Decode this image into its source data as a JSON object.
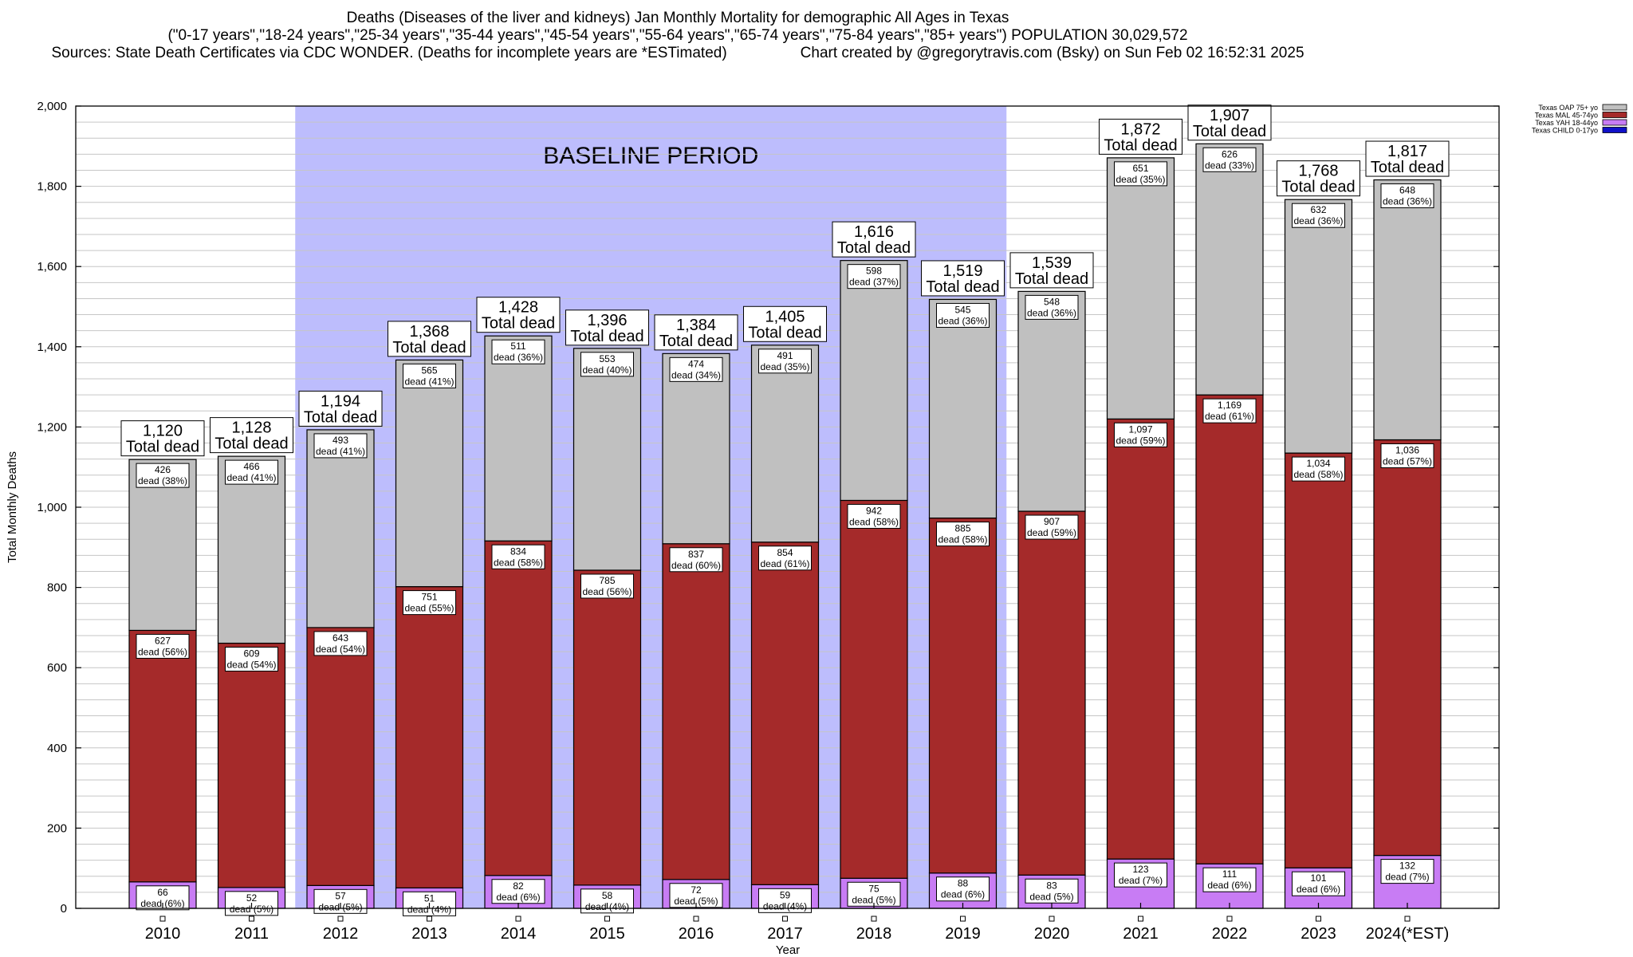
{
  "header": {
    "line1": "Deaths (Diseases of the liver and kidneys) Jan Monthly Mortality for demographic All Ages in Texas",
    "line2": "(\"0-17 years\",\"18-24 years\",\"25-34 years\",\"35-44 years\",\"45-54 years\",\"55-64 years\",\"65-74 years\",\"75-84 years\",\"85+ years\") POPULATION 30,029,572",
    "line3_left": "Sources: State Death Certificates via CDC WONDER. (Deaths for incomplete years are *ESTimated)",
    "line3_right": "Chart created by @gregorytravis.com (Bsky) on Sun Feb 02 16:52:31 2025"
  },
  "chart_data": {
    "type": "bar",
    "stacked": true,
    "title": "Deaths (Diseases of the liver and kidneys) Jan Monthly Mortality for demographic All Ages in Texas",
    "xlabel": "Year",
    "ylabel": "Total Monthly Deaths",
    "ylim": [
      0,
      2000
    ],
    "yticks": [
      0,
      200,
      400,
      600,
      800,
      1000,
      1200,
      1400,
      1600,
      1800,
      2000
    ],
    "ytick_labels": [
      "0",
      "200",
      "400",
      "600",
      "800",
      "1,000",
      "1,200",
      "1,400",
      "1,600",
      "1,800",
      "2,000"
    ],
    "grid": true,
    "legend_position": "top-right",
    "categories": [
      "2010",
      "2011",
      "2012",
      "2013",
      "2014",
      "2015",
      "2016",
      "2017",
      "2018",
      "2019",
      "2020",
      "2021",
      "2022",
      "2023",
      "2024(*EST)"
    ],
    "baseline_period": {
      "label": "BASELINE PERIOD",
      "from": "2012",
      "to": "2019",
      "color": "#bdbdfd"
    },
    "total_suffix": "Total dead",
    "series": [
      {
        "name": "Texas CHILD 0-17yo",
        "color": "#1010c8",
        "values": [
          0,
          0,
          0,
          0,
          0,
          0,
          0,
          0,
          0,
          0,
          0,
          0,
          0,
          0,
          0
        ],
        "labels": []
      },
      {
        "name": "Texas YAH 18-44yo",
        "color": "#c87cf4",
        "values": [
          66,
          52,
          57,
          51,
          82,
          58,
          72,
          59,
          75,
          88,
          83,
          123,
          111,
          101,
          132
        ],
        "labels": [
          [
            "66",
            "dead (6%)"
          ],
          [
            "52",
            "dead (5%)"
          ],
          [
            "57",
            "dead (5%)"
          ],
          [
            "51",
            "dead (4%)"
          ],
          [
            "82",
            "dead (6%)"
          ],
          [
            "58",
            "dead (4%)"
          ],
          [
            "72",
            "dead (5%)"
          ],
          [
            "59",
            "dead (4%)"
          ],
          [
            "75",
            "dead (5%)"
          ],
          [
            "88",
            "dead (6%)"
          ],
          [
            "83",
            "dead (5%)"
          ],
          [
            "123",
            "dead (7%)"
          ],
          [
            "111",
            "dead (6%)"
          ],
          [
            "101",
            "dead (6%)"
          ],
          [
            "132",
            "dead (7%)"
          ]
        ]
      },
      {
        "name": "Texas MAL 45-74yo",
        "color": "#a52a2a",
        "values": [
          627,
          609,
          643,
          751,
          834,
          785,
          837,
          854,
          942,
          885,
          907,
          1097,
          1169,
          1034,
          1036
        ],
        "labels": [
          [
            "627",
            "dead (56%)"
          ],
          [
            "609",
            "dead (54%)"
          ],
          [
            "643",
            "dead (54%)"
          ],
          [
            "751",
            "dead (55%)"
          ],
          [
            "834",
            "dead (58%)"
          ],
          [
            "785",
            "dead (56%)"
          ],
          [
            "837",
            "dead (60%)"
          ],
          [
            "854",
            "dead (61%)"
          ],
          [
            "942",
            "dead (58%)"
          ],
          [
            "885",
            "dead (58%)"
          ],
          [
            "907",
            "dead (59%)"
          ],
          [
            "1,097",
            "dead (59%)"
          ],
          [
            "1,169",
            "dead (61%)"
          ],
          [
            "1,034",
            "dead (58%)"
          ],
          [
            "1,036",
            "dead (57%)"
          ]
        ]
      },
      {
        "name": "Texas OAP 75+ yo",
        "color": "#c0c0c0",
        "values": [
          426,
          466,
          493,
          565,
          511,
          553,
          474,
          491,
          598,
          545,
          548,
          651,
          626,
          632,
          648
        ],
        "labels": [
          [
            "426",
            "dead (38%)"
          ],
          [
            "466",
            "dead (41%)"
          ],
          [
            "493",
            "dead (41%)"
          ],
          [
            "565",
            "dead (41%)"
          ],
          [
            "511",
            "dead (36%)"
          ],
          [
            "553",
            "dead (40%)"
          ],
          [
            "474",
            "dead (34%)"
          ],
          [
            "491",
            "dead (35%)"
          ],
          [
            "598",
            "dead (37%)"
          ],
          [
            "545",
            "dead (36%)"
          ],
          [
            "548",
            "dead (36%)"
          ],
          [
            "651",
            "dead (35%)"
          ],
          [
            "626",
            "dead (33%)"
          ],
          [
            "632",
            "dead (36%)"
          ],
          [
            "648",
            "dead (36%)"
          ]
        ]
      }
    ],
    "totals": [
      1120,
      1128,
      1194,
      1368,
      1428,
      1396,
      1384,
      1405,
      1616,
      1519,
      1539,
      1872,
      1907,
      1768,
      1817
    ],
    "total_labels": [
      "1,120",
      "1,128",
      "1,194",
      "1,368",
      "1,428",
      "1,396",
      "1,384",
      "1,405",
      "1,616",
      "1,519",
      "1,539",
      "1,872",
      "1,907",
      "1,768",
      "1,817"
    ],
    "legend_order": [
      "Texas OAP 75+ yo",
      "Texas MAL 45-74yo",
      "Texas YAH 18-44yo",
      "Texas CHILD 0-17yo"
    ]
  }
}
